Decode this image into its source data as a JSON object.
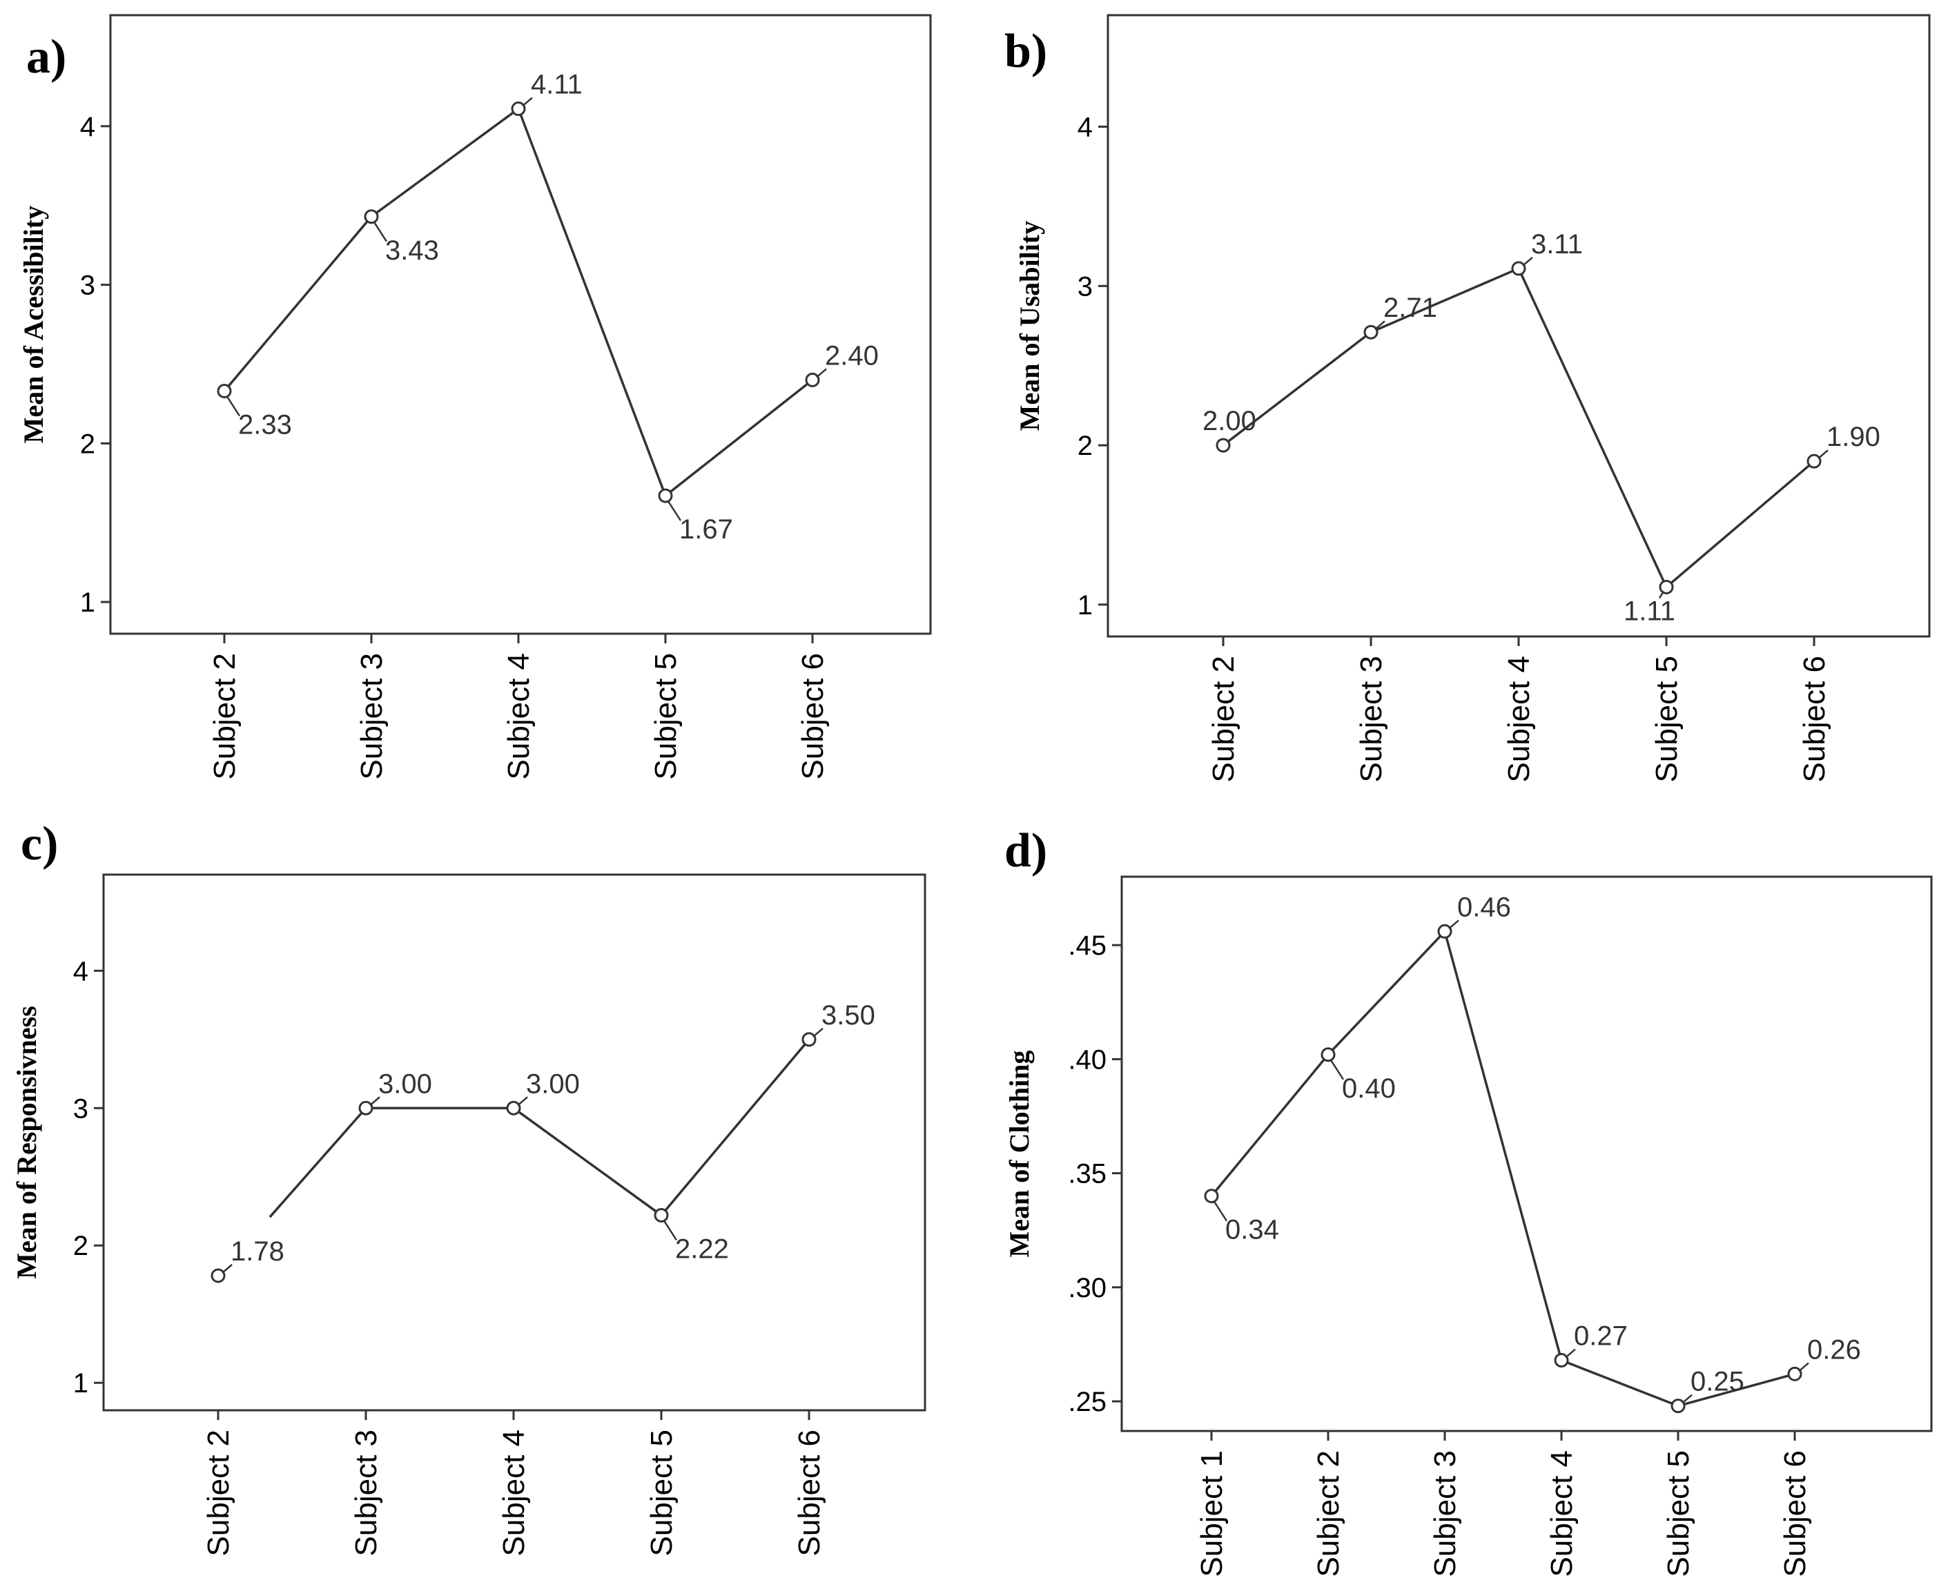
{
  "chart_data": [
    {
      "panel": "a)",
      "type": "line",
      "ylabel": "Mean of Acessibility",
      "categories": [
        "Subject 2",
        "Subject 3",
        "Subject 4",
        "Subject 5",
        "Subject 6"
      ],
      "values": [
        2.33,
        3.43,
        4.11,
        1.67,
        2.4
      ],
      "labels": [
        "2.33",
        "3.43",
        "4.11",
        "1.67",
        "2.40"
      ],
      "label_pos": [
        "below-right",
        "below-right",
        "above-right",
        "below-right",
        "above-right"
      ],
      "yticks": [
        1,
        2,
        3,
        4
      ],
      "ytick_labels": [
        "1",
        "2",
        "3",
        "4"
      ],
      "ylim": [
        0.8,
        4.7
      ]
    },
    {
      "panel": "b)",
      "type": "line",
      "ylabel": "Mean of Usability",
      "categories": [
        "Subject 2",
        "Subject 3",
        "Subject 4",
        "Subject 5",
        "Subject 6"
      ],
      "values": [
        2.0,
        2.71,
        3.11,
        1.11,
        1.9
      ],
      "labels": [
        "2.00",
        "2.71",
        "3.11",
        "1.11",
        "1.90"
      ],
      "label_pos": [
        "above",
        "above-right",
        "above-right",
        "below-left",
        "above-right"
      ],
      "yticks": [
        1,
        2,
        3,
        4
      ],
      "ytick_labels": [
        "1",
        "2",
        "3",
        "4"
      ],
      "ylim": [
        0.8,
        4.7
      ]
    },
    {
      "panel": "c)",
      "type": "line",
      "ylabel": "Mean of Responsivness",
      "categories": [
        "Subject 2",
        "Subject 3",
        "Subject 4",
        "Subject 5",
        "Subject 6"
      ],
      "values": [
        1.78,
        3.0,
        3.0,
        2.22,
        3.5
      ],
      "labels": [
        "1.78",
        "3.00",
        "3.00",
        "2.22",
        "3.50"
      ],
      "label_pos": [
        "above-right",
        "above-right",
        "above-right",
        "below-right",
        "above-right"
      ],
      "gap_after_first": true,
      "yticks": [
        1,
        2,
        3,
        4
      ],
      "ytick_labels": [
        "1",
        "2",
        "3",
        "4"
      ],
      "ylim": [
        0.8,
        4.7
      ]
    },
    {
      "panel": "d)",
      "type": "line",
      "ylabel": "Mean of Clothing",
      "categories": [
        "Subject 1",
        "Subject 2",
        "Subject 3",
        "Subject 4",
        "Subject 5",
        "Subject 6"
      ],
      "values": [
        0.34,
        0.402,
        0.456,
        0.268,
        0.248,
        0.262
      ],
      "labels": [
        "0.34",
        "0.40",
        "0.46",
        "0.27",
        "0.25",
        "0.26"
      ],
      "label_pos": [
        "below-right",
        "below-right",
        "above-right",
        "above-right",
        "above-right",
        "above-right"
      ],
      "yticks": [
        0.25,
        0.3,
        0.35,
        0.4,
        0.45
      ],
      "ytick_labels": [
        ".25",
        ".30",
        ".35",
        ".40",
        ".45"
      ],
      "ylim": [
        0.237,
        0.48
      ]
    }
  ]
}
